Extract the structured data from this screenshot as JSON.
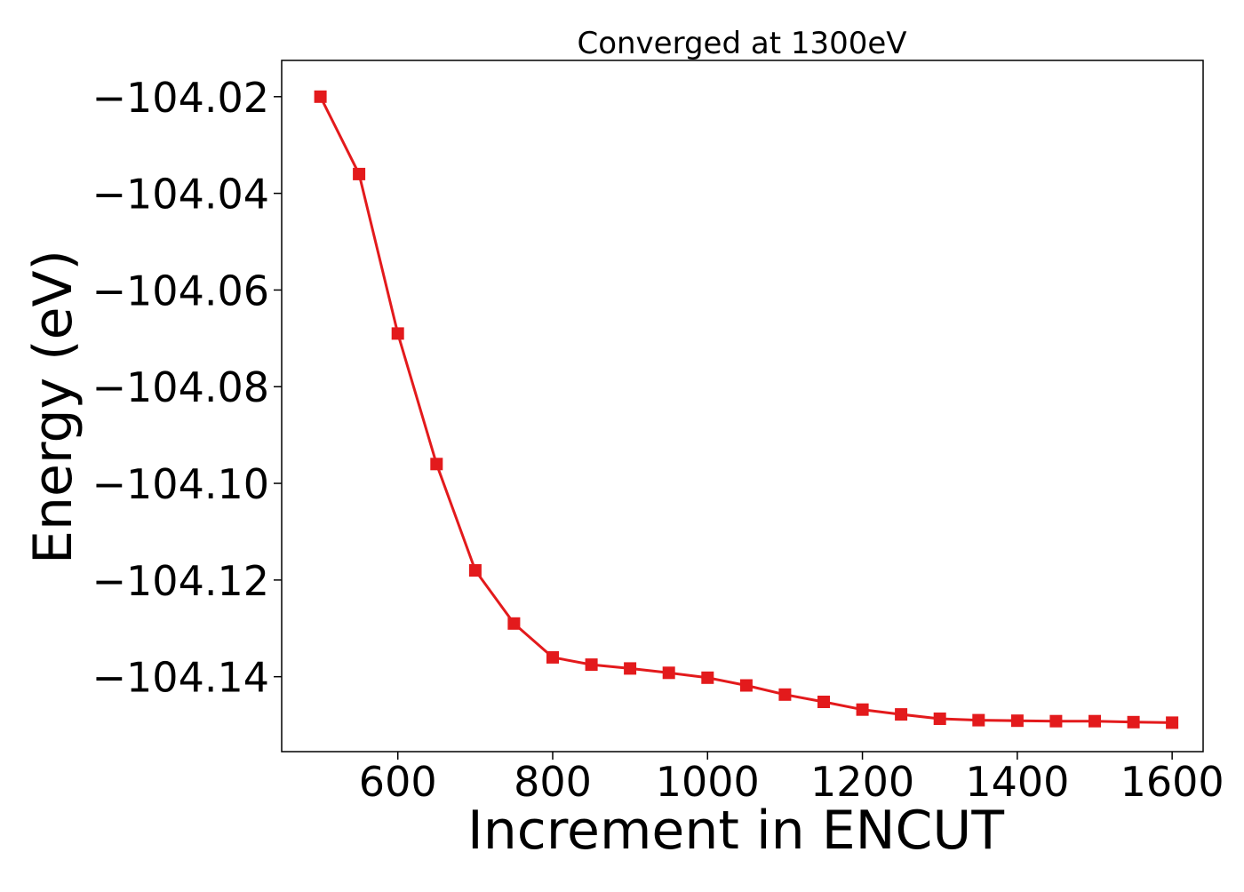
{
  "chart_data": {
    "type": "line",
    "title": "Converged at 1300eV",
    "xlabel": "Increment in ENCUT",
    "ylabel": "Energy (eV)",
    "xlim": [
      450,
      1640
    ],
    "ylim": [
      -104.1555,
      -104.0125
    ],
    "x_ticks": [
      600,
      800,
      1000,
      1200,
      1400,
      1600
    ],
    "y_ticks": [
      -104.02,
      -104.04,
      -104.06,
      -104.08,
      -104.1,
      -104.12,
      -104.14
    ],
    "grid": false,
    "legend": "none",
    "series": [
      {
        "color": "#e31a1c",
        "marker": "square",
        "x": [
          500,
          550,
          600,
          650,
          700,
          750,
          800,
          850,
          900,
          950,
          1000,
          1050,
          1100,
          1150,
          1200,
          1250,
          1300,
          1350,
          1400,
          1450,
          1500,
          1550,
          1600
        ],
        "y": [
          -104.02,
          -104.036,
          -104.069,
          -104.096,
          -104.118,
          -104.129,
          -104.136,
          -104.1375,
          -104.1383,
          -104.1392,
          -104.1402,
          -104.1418,
          -104.1437,
          -104.1452,
          -104.1468,
          -104.1478,
          -104.1487,
          -104.149,
          -104.1491,
          -104.1492,
          -104.1492,
          -104.1494,
          -104.1495
        ]
      }
    ]
  }
}
